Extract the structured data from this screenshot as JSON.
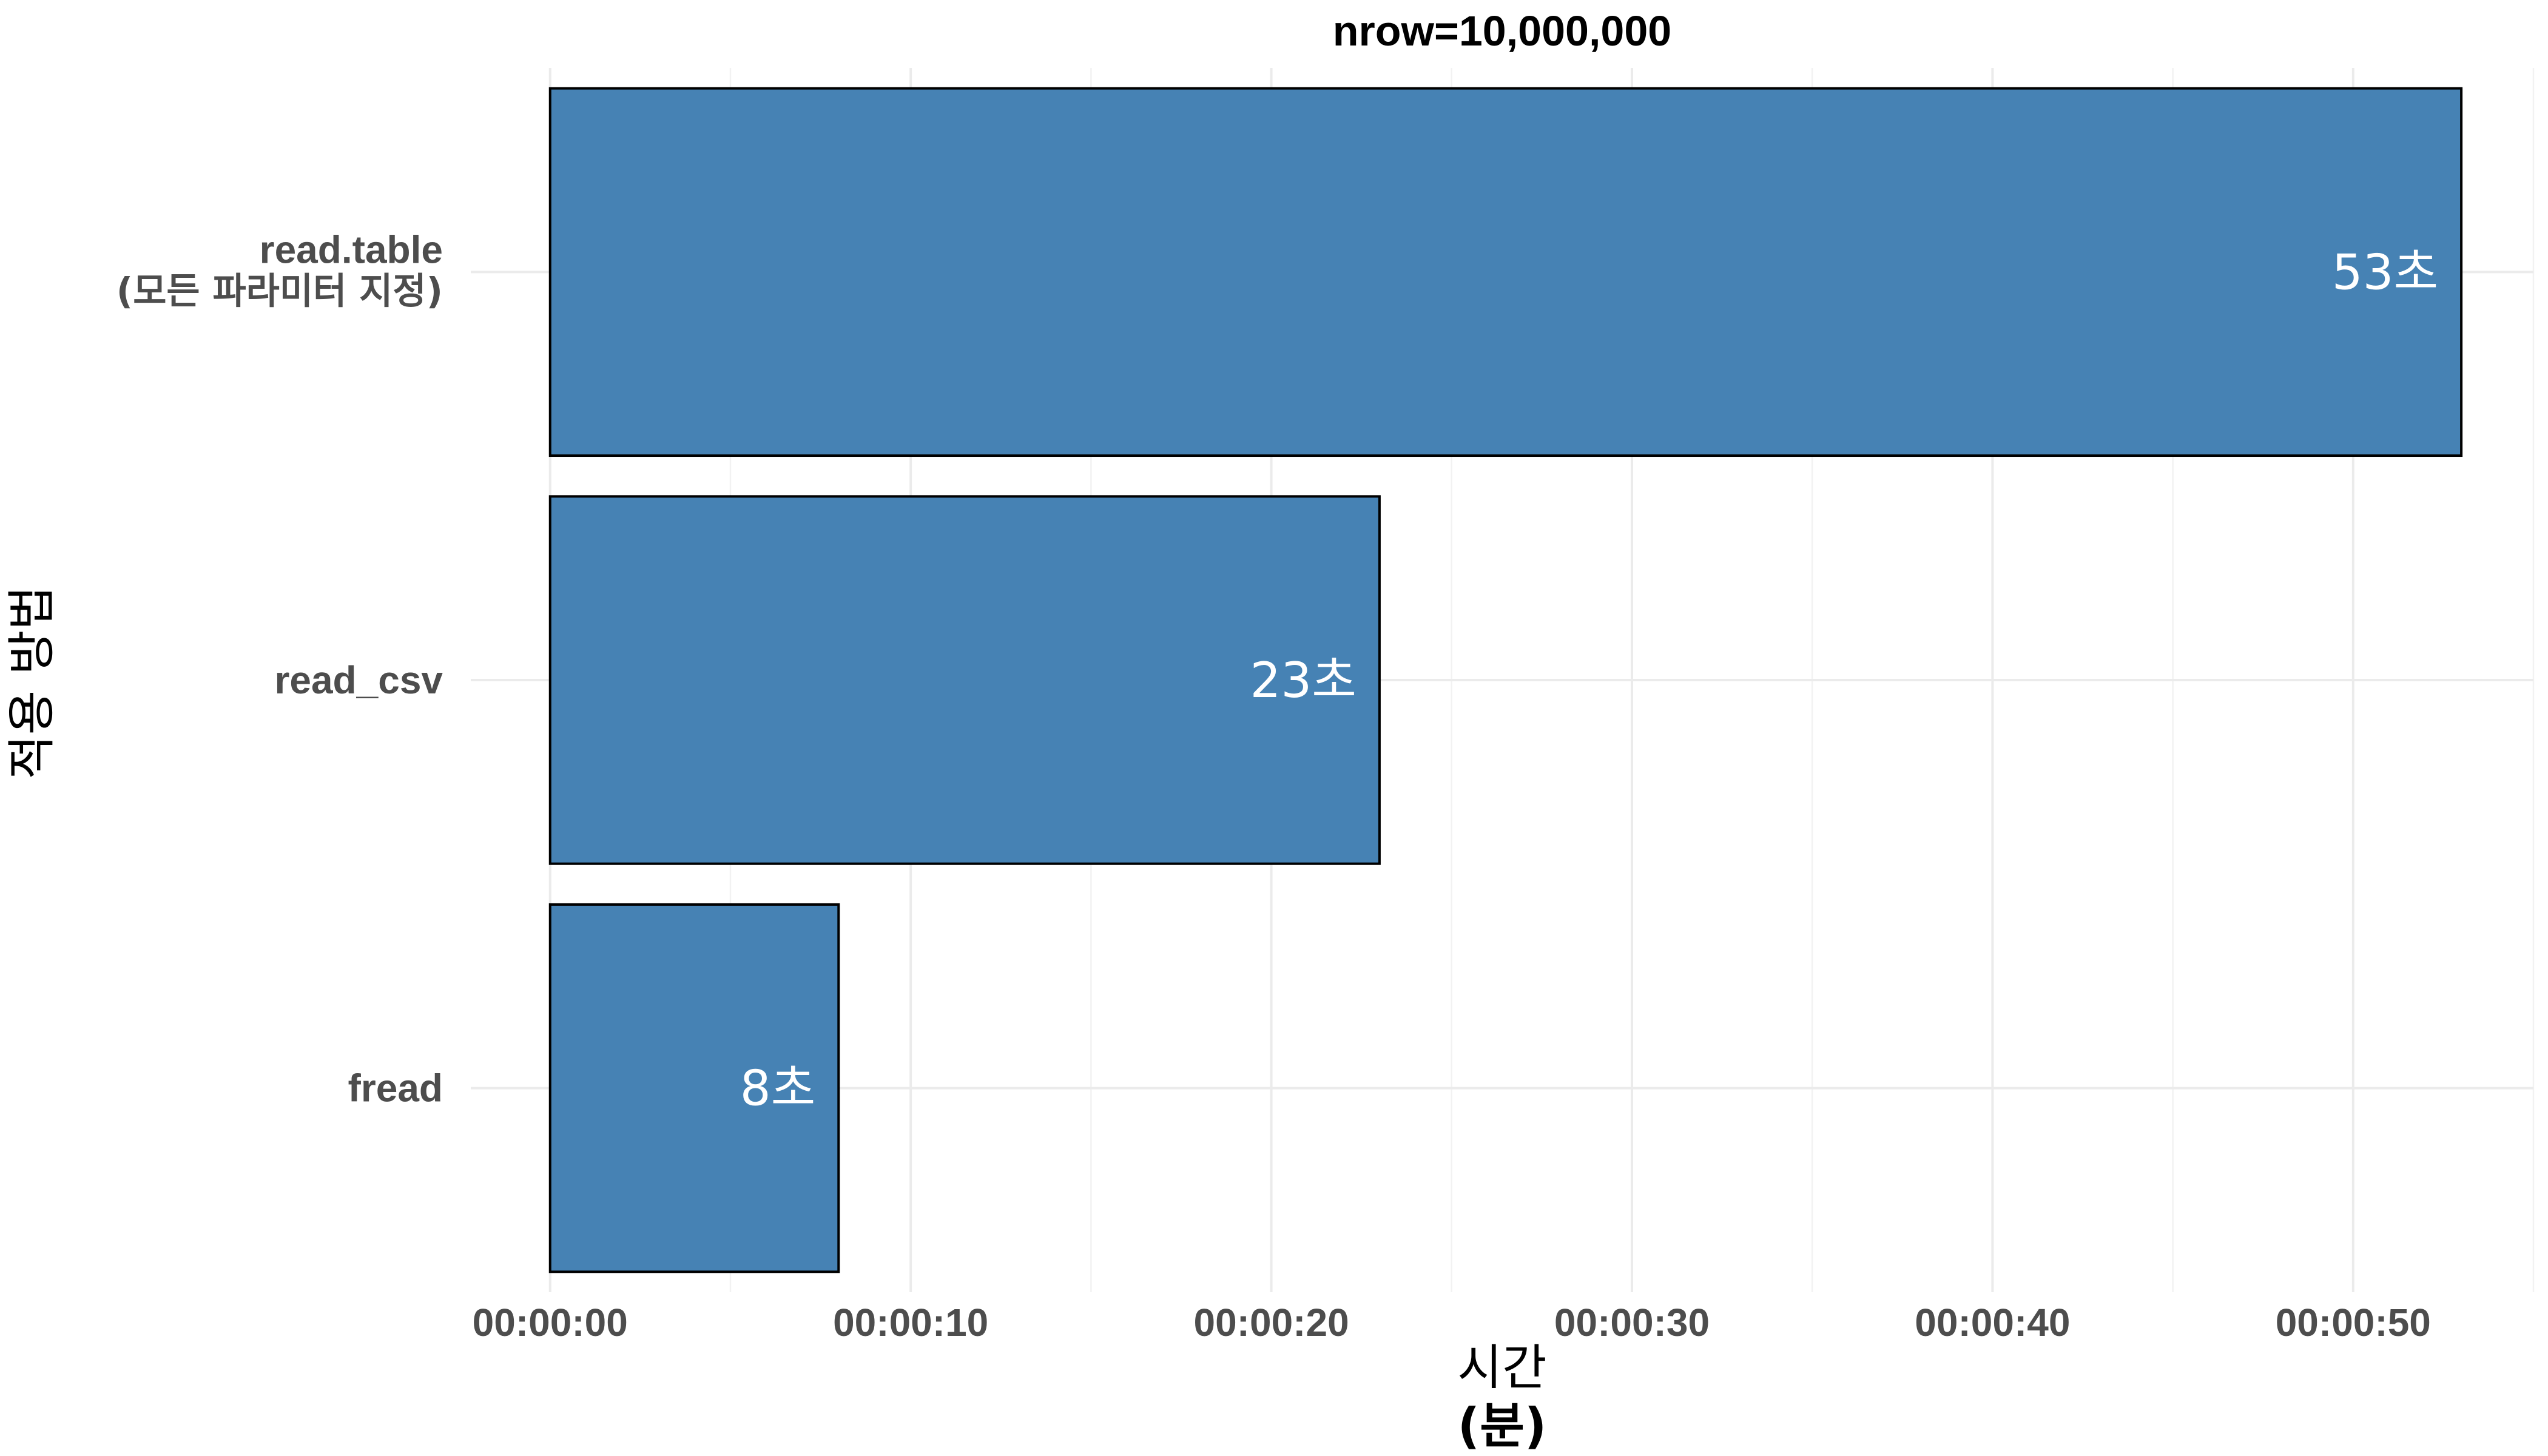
{
  "chart_data": {
    "type": "bar",
    "orientation": "horizontal",
    "title": "nrow=10,000,000",
    "xlabel": [
      "시간",
      "(분)"
    ],
    "ylabel": "적용 방법",
    "categories": [
      [
        "read.table",
        "(모든 파라미터 지정)"
      ],
      [
        "read_csv"
      ],
      [
        "fread"
      ]
    ],
    "values": [
      53,
      23,
      8
    ],
    "value_labels": [
      "53초",
      "23초",
      "8초"
    ],
    "value_unit": "seconds",
    "xlim": [
      -2.2,
      55
    ],
    "x_ticks": [
      0,
      10,
      20,
      30,
      40,
      50
    ],
    "x_tick_labels": [
      "00:00:00",
      "00:00:10",
      "00:00:20",
      "00:00:30",
      "00:00:40",
      "00:00:50"
    ],
    "bar_color": "#4682b4",
    "bar_outline": "#000000",
    "grid": true,
    "legend": "none"
  }
}
